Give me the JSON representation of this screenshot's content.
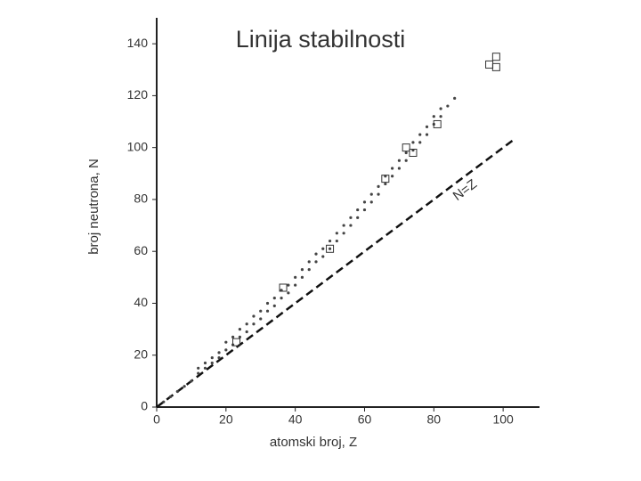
{
  "chart_data": {
    "type": "scatter",
    "title": "Linija stabilnosti",
    "x_label": "atomski broj, Z",
    "y_label": "broj neutrona, N",
    "xlim": [
      0,
      110.5
    ],
    "ylim": [
      0,
      150
    ],
    "xticks": [
      0,
      20,
      40,
      60,
      80,
      100
    ],
    "yticks": [
      0,
      20,
      40,
      60,
      80,
      100,
      120,
      140
    ],
    "series": [
      {
        "color": "#444444",
        "marker": "dot",
        "x": [
          2,
          4,
          6,
          8,
          10,
          12,
          12,
          14,
          14,
          16,
          16,
          18,
          18,
          20,
          20,
          22,
          22,
          24,
          24,
          26,
          26,
          28,
          28,
          30,
          30,
          32,
          32,
          34,
          34,
          36,
          36,
          38,
          38,
          40,
          40,
          42,
          42,
          44,
          44,
          46,
          46,
          48,
          48,
          50,
          50,
          52,
          52,
          54,
          54,
          56,
          56,
          58,
          58,
          60,
          60,
          62,
          62,
          64,
          64,
          66,
          66,
          68,
          68,
          70,
          70,
          72,
          72,
          74,
          74,
          76,
          76,
          78,
          78,
          80,
          80,
          82,
          82,
          84,
          86
        ],
        "y": [
          2,
          4,
          6,
          8,
          10,
          13,
          15,
          15,
          17,
          17,
          19,
          19,
          21,
          22,
          25,
          24,
          27,
          27,
          30,
          29,
          32,
          32,
          35,
          34,
          37,
          37,
          40,
          39,
          42,
          42,
          45,
          44,
          47,
          47,
          50,
          50,
          53,
          53,
          56,
          56,
          59,
          58,
          61,
          61,
          64,
          64,
          67,
          67,
          70,
          70,
          73,
          73,
          76,
          76,
          79,
          79,
          82,
          82,
          85,
          86,
          89,
          89,
          92,
          92,
          95,
          95,
          98,
          99,
          102,
          102,
          105,
          105,
          108,
          109,
          112,
          112,
          115,
          116,
          119
        ]
      },
      {
        "color": "#333333",
        "marker": "square",
        "x": [
          23,
          36.5,
          50,
          66,
          72,
          74,
          81,
          96,
          98,
          98
        ],
        "y": [
          25,
          46,
          61,
          88,
          100,
          98,
          109,
          132,
          135,
          131
        ]
      }
    ],
    "reference_line": {
      "x": [
        0,
        103
      ],
      "y": [
        0,
        103
      ],
      "dash": true,
      "label": "N=Z"
    }
  }
}
